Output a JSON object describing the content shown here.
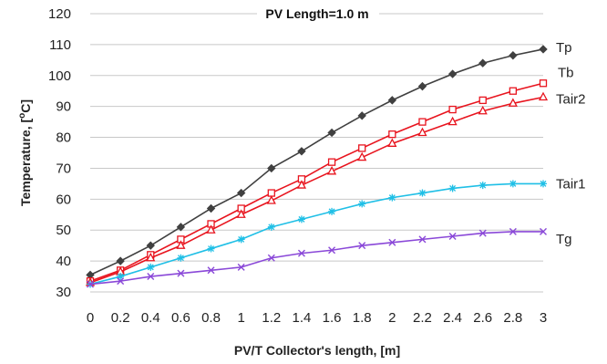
{
  "chart_data": {
    "type": "line",
    "title": "PV Length=1.0 m",
    "xlabel": "PV/T Collector's length, [m]",
    "ylabel": "Temperature, [oC]",
    "ylabel_parts": {
      "main": "Temperature, [",
      "sup": "o",
      "unit": "C]"
    },
    "xlim": [
      0,
      3
    ],
    "ylim": [
      30,
      120
    ],
    "x_ticks": [
      "0",
      "0.2",
      "0.4",
      "0.6",
      "0.8",
      "1",
      "1.2",
      "1.4",
      "1.6",
      "1.8",
      "2",
      "2.2",
      "2.4",
      "2.6",
      "2.8",
      "3"
    ],
    "y_ticks": [
      "30",
      "40",
      "50",
      "60",
      "70",
      "80",
      "90",
      "100",
      "110",
      "120"
    ],
    "grid": "horizontal",
    "x": [
      0,
      0.2,
      0.4,
      0.6,
      0.8,
      1.0,
      1.2,
      1.4,
      1.6,
      1.8,
      2.0,
      2.2,
      2.4,
      2.6,
      2.8,
      3.0
    ],
    "series": [
      {
        "name": "Tp",
        "color": "#404040",
        "marker": "diamond",
        "values": [
          35.5,
          40,
          45,
          51,
          57,
          62,
          70,
          75.5,
          81.5,
          87,
          92,
          96.5,
          100.5,
          104,
          106.5,
          108.5
        ]
      },
      {
        "name": "Tb",
        "color": "#e8141e",
        "marker": "square",
        "values": [
          33.5,
          37,
          42,
          47,
          52,
          57,
          62,
          66.5,
          72,
          76.5,
          81,
          85,
          89,
          92,
          95,
          97.5
        ]
      },
      {
        "name": "Tair2",
        "color": "#e8141e",
        "marker": "triangle",
        "values": [
          33,
          36.5,
          41,
          45,
          50,
          55,
          59.5,
          64.5,
          69,
          73.5,
          78,
          81.5,
          85,
          88.5,
          91,
          93
        ]
      },
      {
        "name": "Tair1",
        "color": "#1fbfe6",
        "marker": "star",
        "values": [
          32.5,
          35,
          38,
          41,
          44,
          47,
          51,
          53.5,
          56,
          58.5,
          60.5,
          62,
          63.5,
          64.5,
          65,
          65
        ]
      },
      {
        "name": "Tg",
        "color": "#8a48d8",
        "marker": "x",
        "values": [
          32.5,
          33.5,
          35,
          36,
          37,
          38,
          41,
          42.5,
          43.5,
          45,
          46,
          47,
          48,
          49,
          49.5,
          49.5
        ]
      }
    ]
  }
}
